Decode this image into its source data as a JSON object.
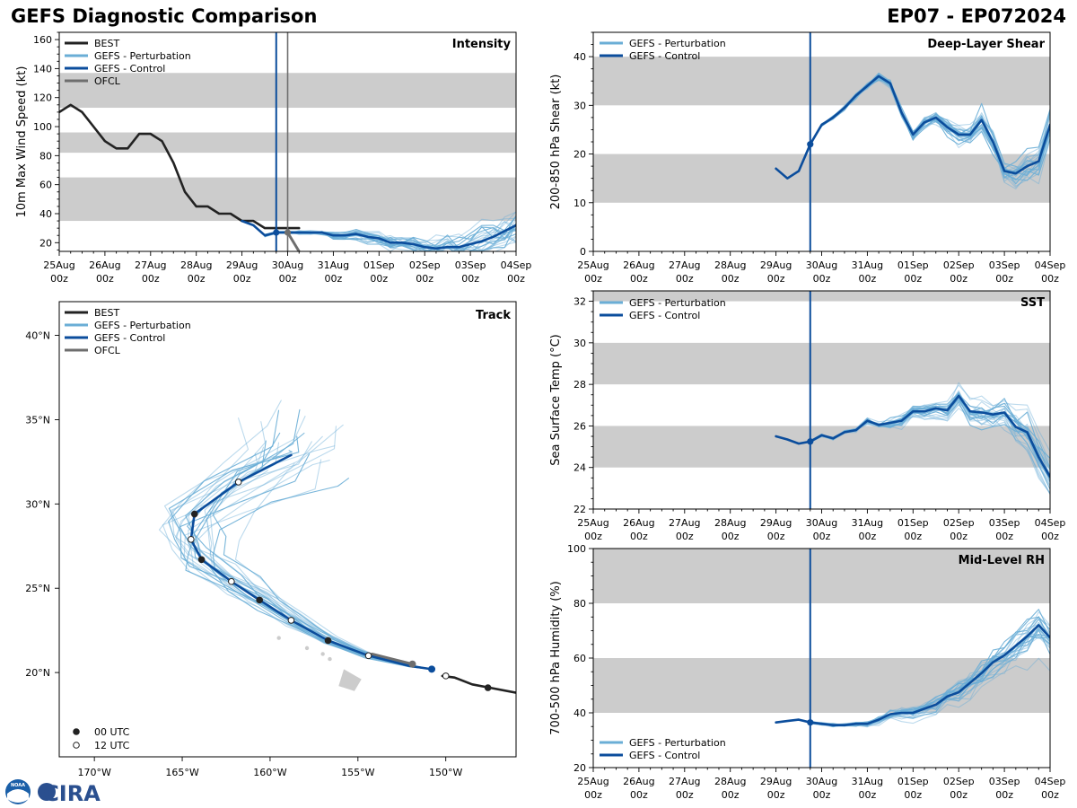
{
  "header": {
    "title": "GEFS Diagnostic Comparison",
    "storm_id": "EP07 - EP072024"
  },
  "colors": {
    "best": "#222222",
    "perturbation": "#6aaed6",
    "control": "#0b4d9c",
    "ofcl": "#6e6e6e",
    "band": "#cccccc",
    "init": "#0b4d9c",
    "land": "#cccccc"
  },
  "legend_labels": {
    "best": "BEST",
    "perturbation": "GEFS - Perturbation",
    "control": "GEFS - Control",
    "ofcl": "OFCL",
    "utc00": "00 UTC",
    "utc12": "12 UTC"
  },
  "time_axis": {
    "ticks": [
      0,
      24,
      48,
      72,
      96,
      120,
      144,
      168,
      192,
      216,
      240
    ],
    "labels_top": [
      "25Aug",
      "26Aug",
      "27Aug",
      "28Aug",
      "29Aug",
      "30Aug",
      "31Aug",
      "01Sep",
      "02Sep",
      "03Sep",
      "04Sep"
    ],
    "labels_bottom": [
      "00z",
      "00z",
      "00z",
      "00z",
      "00z",
      "00z",
      "00z",
      "00z",
      "00z",
      "00z",
      "00z"
    ],
    "init_hour": 114,
    "ofcl_init_hour": 120
  },
  "logo": {
    "noaa": "NOAA",
    "cira": "CIRA"
  },
  "chart_data": [
    {
      "id": "intensity",
      "type": "line",
      "title": "Intensity",
      "ylabel": "10m Max Wind Speed (kt)",
      "ylim": [
        14,
        165
      ],
      "yticks": [
        20,
        40,
        60,
        80,
        100,
        120,
        140,
        160
      ],
      "bands": [
        [
          35,
          65
        ],
        [
          82,
          96
        ],
        [
          113,
          137
        ]
      ],
      "best": {
        "x": [
          0,
          6,
          12,
          18,
          24,
          30,
          36,
          42,
          48,
          54,
          60,
          66,
          72,
          78,
          84,
          90,
          96,
          102,
          108,
          114,
          120,
          126
        ],
        "y": [
          110,
          115,
          110,
          100,
          90,
          85,
          85,
          95,
          95,
          90,
          75,
          55,
          45,
          45,
          40,
          40,
          35,
          35,
          30,
          30,
          30,
          30
        ]
      },
      "control": {
        "x": [
          96,
          102,
          108,
          114,
          120,
          126,
          132,
          138,
          144,
          150,
          156,
          162,
          168,
          174,
          180,
          186,
          192,
          198,
          204,
          210,
          216,
          222,
          228,
          234,
          240
        ],
        "y": [
          35,
          32,
          25,
          27,
          27,
          27,
          27,
          27,
          25,
          25,
          26,
          24,
          23,
          20,
          20,
          19,
          17,
          16,
          17,
          17,
          19,
          21,
          24,
          28,
          32
        ]
      },
      "perturbation_offsets": [
        -4,
        -2,
        0,
        2,
        4,
        -3,
        3,
        1,
        -1,
        5
      ],
      "ofcl": {
        "x": [
          120,
          126
        ],
        "y": [
          27,
          14
        ]
      }
    },
    {
      "id": "track",
      "type": "line",
      "title": "Track",
      "xlim": [
        -172,
        -146
      ],
      "ylim": [
        15,
        42
      ],
      "xticks": [
        -170,
        -165,
        -160,
        -155,
        -150
      ],
      "xtick_labels": [
        "170°W",
        "165°W",
        "160°W",
        "155°W",
        "150°W"
      ],
      "yticks": [
        20,
        25,
        30,
        35,
        40
      ],
      "ytick_labels": [
        "20°N",
        "25°N",
        "30°N",
        "35°N",
        "40°N"
      ],
      "best": {
        "lon": [
          -146,
          -147.5,
          -148.5,
          -149.5,
          -150.2
        ],
        "lat": [
          18.8,
          19.1,
          19.3,
          19.7,
          19.8
        ]
      },
      "control": {
        "lon": [
          -150.8,
          -152.1,
          -154.4,
          -156.7,
          -158.8,
          -160.6,
          -162.2,
          -163.9,
          -164.5,
          -164.3,
          -161.8,
          -158.8
        ],
        "lat": [
          20.2,
          20.4,
          21.0,
          21.9,
          23.1,
          24.3,
          25.4,
          26.7,
          27.9,
          29.4,
          31.3,
          32.9
        ]
      },
      "ofcl": {
        "lon": [
          -151.9,
          -154.2
        ],
        "lat": [
          20.5,
          21.1
        ]
      },
      "markers_00": [
        [
          -147.6,
          19.1
        ],
        [
          -156.7,
          21.9
        ],
        [
          -160.6,
          24.3
        ],
        [
          -163.9,
          26.7
        ],
        [
          -164.3,
          29.4
        ]
      ],
      "markers_12": [
        [
          -150.0,
          19.8
        ],
        [
          -154.4,
          21.0
        ],
        [
          -158.8,
          23.1
        ],
        [
          -162.2,
          25.4
        ],
        [
          -164.5,
          27.9
        ],
        [
          -161.8,
          31.3
        ]
      ],
      "land": [
        [
          -155.8,
          20.2
        ],
        [
          -154.8,
          19.6
        ],
        [
          -155.2,
          18.9
        ],
        [
          -156.1,
          19.2
        ],
        [
          -155.8,
          20.2
        ]
      ]
    },
    {
      "id": "shear",
      "type": "line",
      "title": "Deep-Layer Shear",
      "ylabel": "200-850 hPa Shear (kt)",
      "ylim": [
        0,
        45
      ],
      "yticks": [
        0,
        10,
        20,
        30,
        40
      ],
      "bands": [
        [
          10,
          20
        ],
        [
          30,
          40
        ]
      ],
      "control": {
        "x": [
          96,
          102,
          108,
          114,
          120,
          126,
          132,
          138,
          144,
          150,
          156,
          162,
          168,
          174,
          180,
          186,
          192,
          198,
          204,
          210,
          216,
          222,
          228,
          234,
          240
        ],
        "y": [
          17,
          15,
          16.5,
          22,
          26,
          27.5,
          29.5,
          32,
          34,
          36,
          34.5,
          28.5,
          24,
          26.5,
          27.5,
          25.5,
          24,
          24,
          27,
          22.5,
          16.5,
          16,
          17.5,
          18.5,
          26
        ]
      }
    },
    {
      "id": "sst",
      "type": "line",
      "title": "SST",
      "ylabel": "Sea Surface Temp (°C)",
      "ylim": [
        22,
        32.5
      ],
      "yticks": [
        22,
        24,
        26,
        28,
        30,
        32
      ],
      "bands": [
        [
          24,
          26
        ],
        [
          28,
          30
        ],
        [
          32,
          32.5
        ]
      ],
      "control": {
        "x": [
          96,
          102,
          108,
          114,
          120,
          126,
          132,
          138,
          144,
          150,
          156,
          162,
          168,
          174,
          180,
          186,
          192,
          198,
          204,
          210,
          216,
          222,
          228,
          234,
          240
        ],
        "y": [
          25.5,
          25.35,
          25.15,
          25.25,
          25.55,
          25.4,
          25.7,
          25.8,
          26.25,
          26.05,
          26.15,
          26.25,
          26.7,
          26.7,
          26.85,
          26.75,
          27.45,
          26.7,
          26.65,
          26.55,
          26.65,
          25.95,
          25.7,
          24.5,
          23.55
        ]
      }
    },
    {
      "id": "rh",
      "type": "line",
      "title": "Mid-Level RH",
      "ylabel": "700-500 hPa Humidity (%)",
      "ylim": [
        20,
        100
      ],
      "yticks": [
        20,
        40,
        60,
        80,
        100
      ],
      "bands": [
        [
          40,
          60
        ],
        [
          80,
          100
        ]
      ],
      "control": {
        "x": [
          96,
          102,
          108,
          114,
          120,
          126,
          132,
          138,
          144,
          150,
          156,
          162,
          168,
          174,
          180,
          186,
          192,
          198,
          204,
          210,
          216,
          222,
          228,
          234,
          240
        ],
        "y": [
          36.5,
          37,
          37.5,
          36.5,
          36,
          35.5,
          35.5,
          36,
          36,
          37.5,
          39.5,
          40,
          40,
          41.5,
          43,
          46,
          47.5,
          51,
          54.5,
          58.5,
          61,
          64.5,
          68,
          72,
          67.5
        ]
      }
    }
  ]
}
